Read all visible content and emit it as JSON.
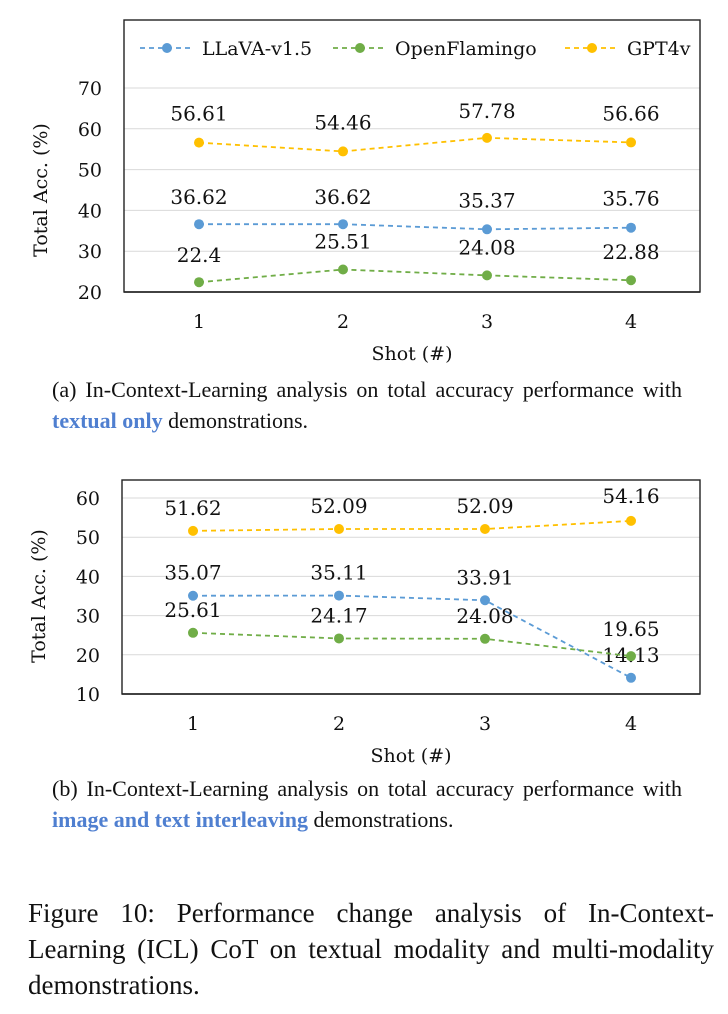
{
  "chart_data": [
    {
      "type": "line",
      "x": [
        1,
        2,
        3,
        4
      ],
      "xlabel": "Shot (#)",
      "ylabel": "Total Acc. (%)",
      "ylim": [
        20,
        70
      ],
      "yticks": [
        20,
        30,
        40,
        50,
        60,
        70
      ],
      "grid": true,
      "legend": "top",
      "series": [
        {
          "name": "LLaVA-v1.5",
          "values": [
            36.62,
            36.62,
            35.37,
            35.76
          ],
          "labels": [
            "36.62",
            "36.62",
            "35.37",
            "35.76"
          ],
          "color": "#5b9bd5"
        },
        {
          "name": "OpenFlamingo",
          "values": [
            22.4,
            25.51,
            24.08,
            22.88
          ],
          "labels": [
            "22.4",
            "25.51",
            "24.08",
            "22.88"
          ],
          "color": "#70ad47"
        },
        {
          "name": "GPT4v",
          "values": [
            56.61,
            54.46,
            57.78,
            56.66
          ],
          "labels": [
            "56.61",
            "54.46",
            "57.78",
            "56.66"
          ],
          "color": "#ffc000"
        }
      ]
    },
    {
      "type": "line",
      "x": [
        1,
        2,
        3,
        4
      ],
      "xlabel": "Shot (#)",
      "ylabel": "Total Acc. (%)",
      "ylim": [
        10,
        60
      ],
      "yticks": [
        10,
        20,
        30,
        40,
        50,
        60
      ],
      "grid": true,
      "series": [
        {
          "name": "LLaVA-v1.5",
          "values": [
            35.07,
            35.11,
            33.91,
            14.13
          ],
          "labels": [
            "35.07",
            "35.11",
            "33.91",
            "14.13"
          ],
          "color": "#5b9bd5"
        },
        {
          "name": "OpenFlamingo",
          "values": [
            25.61,
            24.17,
            24.08,
            19.65
          ],
          "labels": [
            "25.61",
            "24.17",
            "24.08",
            "19.65"
          ],
          "color": "#70ad47"
        },
        {
          "name": "GPT4v",
          "values": [
            51.62,
            52.09,
            52.09,
            54.16
          ],
          "labels": [
            "51.62",
            "52.09",
            "52.09",
            "54.16"
          ],
          "color": "#ffc000"
        }
      ]
    }
  ],
  "captions": {
    "a": {
      "prefix": "(a)  In-Context-Learning analysis on total accuracy performance with ",
      "highlight": "textual only",
      "suffix": " demonstrations."
    },
    "b": {
      "prefix": "(b)  In-Context-Learning analysis on total accuracy performance with ",
      "highlight": "image and text interleaving",
      "suffix": " demonstrations."
    },
    "figure": "Figure 10: Performance change analysis of In-Context-Learning (ICL) CoT on textual modality and multi-modality demonstrations."
  }
}
